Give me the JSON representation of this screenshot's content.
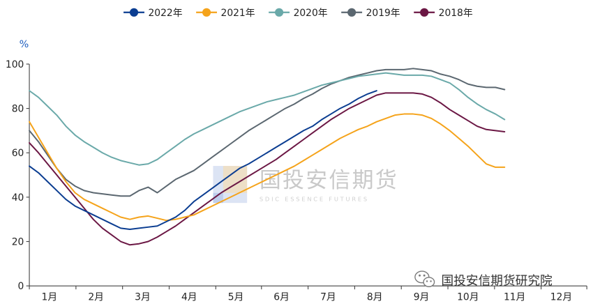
{
  "chart_data": {
    "type": "line",
    "title": "",
    "ylabel": "%",
    "xlabel": "",
    "ylim": [
      0,
      100
    ],
    "yticks": [
      0,
      20,
      40,
      60,
      80,
      100
    ],
    "xlim": [
      0,
      52
    ],
    "categories": [
      "1月",
      "2月",
      "3月",
      "4月",
      "5月",
      "6月",
      "7月",
      "8月",
      "9月",
      "10月",
      "11月",
      "12月"
    ],
    "category_centers": [
      2.2,
      7.3,
      12.4,
      17.5,
      22.6,
      27.6,
      32.7,
      37.8,
      42.9,
      48.0,
      53.1,
      58.2
    ],
    "month_boundaries": [
      0,
      5.1,
      10.2,
      15.3,
      20.4,
      25.4,
      30.5,
      35.6,
      40.7,
      45.8,
      50.9,
      56.0,
      61.0
    ],
    "x_unit": "week_of_year",
    "series": [
      {
        "name": "2022年",
        "color": "#0b3d91",
        "x": [
          0,
          1,
          2,
          3,
          4,
          5,
          6,
          7,
          8,
          9,
          10,
          11,
          12,
          13,
          14,
          15,
          16,
          17,
          18,
          19,
          20,
          21,
          22,
          23,
          24,
          25,
          26,
          27,
          28,
          29,
          30,
          31,
          32,
          33,
          34,
          35,
          36,
          37,
          38
        ],
        "values": [
          54,
          51,
          47,
          43,
          39,
          36,
          34,
          32,
          30,
          28,
          26,
          25.5,
          26,
          26.5,
          27,
          29,
          31,
          34,
          38,
          41,
          44,
          47,
          50,
          53,
          55,
          57.5,
          60,
          62.5,
          65,
          67.5,
          70,
          72,
          75,
          77.5,
          80,
          82,
          84.5,
          86.5,
          88
        ]
      },
      {
        "name": "2021年",
        "color": "#f5a31a",
        "x": [
          0,
          1,
          2,
          3,
          4,
          5,
          6,
          7,
          8,
          9,
          10,
          11,
          12,
          13,
          14,
          15,
          16,
          17,
          18,
          19,
          20,
          21,
          22,
          23,
          24,
          25,
          26,
          27,
          28,
          29,
          30,
          31,
          32,
          33,
          34,
          35,
          36,
          37,
          38,
          39,
          40,
          41,
          42,
          43,
          44,
          45,
          46,
          47,
          48,
          49,
          50,
          51,
          52
        ],
        "values": [
          74,
          67,
          60,
          53,
          47,
          42,
          39,
          37,
          35,
          33,
          31,
          30,
          31,
          31.5,
          30.5,
          29.5,
          30,
          31,
          32,
          34,
          36,
          38,
          40,
          42,
          44,
          46,
          48,
          50,
          52,
          54,
          56.5,
          59,
          61.5,
          64,
          66.5,
          68.5,
          70.5,
          72,
          74,
          75.5,
          77,
          77.5,
          77.5,
          77,
          75.5,
          73,
          70,
          66.5,
          63,
          59,
          55,
          53.5,
          53.5
        ]
      },
      {
        "name": "2020年",
        "color": "#6aa9a9",
        "x": [
          0,
          1,
          2,
          3,
          4,
          5,
          6,
          7,
          8,
          9,
          10,
          11,
          12,
          13,
          14,
          15,
          16,
          17,
          18,
          19,
          20,
          21,
          22,
          23,
          24,
          25,
          26,
          27,
          28,
          29,
          30,
          31,
          32,
          33,
          34,
          35,
          36,
          37,
          38,
          39,
          40,
          41,
          42,
          43,
          44,
          45,
          46,
          47,
          48,
          49,
          50,
          51,
          52
        ],
        "values": [
          88,
          85,
          81,
          77,
          72,
          68,
          65,
          62.5,
          60,
          58,
          56.5,
          55.5,
          54.5,
          55,
          57,
          60,
          63,
          66,
          68.5,
          70.5,
          72.5,
          74.5,
          76.5,
          78.5,
          80,
          81.5,
          83,
          84,
          85,
          86,
          87.5,
          89,
          90.5,
          91.5,
          92.5,
          93.5,
          94.5,
          95,
          95.5,
          96,
          95.5,
          95,
          95,
          95,
          94.5,
          93,
          91.5,
          88.5,
          85,
          82,
          79.5,
          77.5,
          75
        ]
      },
      {
        "name": "2019年",
        "color": "#5b6770",
        "x": [
          0,
          1,
          2,
          3,
          4,
          5,
          6,
          7,
          8,
          9,
          10,
          11,
          12,
          13,
          14,
          15,
          16,
          17,
          18,
          19,
          20,
          21,
          22,
          23,
          24,
          25,
          26,
          27,
          28,
          29,
          30,
          31,
          32,
          33,
          34,
          35,
          36,
          37,
          38,
          39,
          40,
          41,
          42,
          43,
          44,
          45,
          46,
          47,
          48,
          49,
          50,
          51,
          52
        ],
        "values": [
          70,
          65,
          59,
          53,
          48,
          45,
          43,
          42,
          41.5,
          41,
          40.5,
          40.5,
          43,
          44.5,
          42,
          45,
          48,
          50,
          52,
          55,
          58,
          61,
          64,
          67,
          70,
          72.5,
          75,
          77.5,
          80,
          82,
          84.5,
          86.5,
          89,
          91,
          92.5,
          94,
          95,
          96,
          97,
          97.5,
          97.5,
          97.5,
          98,
          97.5,
          97,
          95.5,
          94.5,
          93,
          91,
          90,
          89.5,
          89.5,
          88.5
        ]
      },
      {
        "name": "2018年",
        "color": "#6b1744",
        "x": [
          0,
          1,
          2,
          3,
          4,
          5,
          6,
          7,
          8,
          9,
          10,
          11,
          12,
          13,
          14,
          15,
          16,
          17,
          18,
          19,
          20,
          21,
          22,
          23,
          24,
          25,
          26,
          27,
          28,
          29,
          30,
          31,
          32,
          33,
          34,
          35,
          36,
          37,
          38,
          39,
          40,
          41,
          42,
          43,
          44,
          45,
          46,
          47,
          48,
          49,
          50,
          51,
          52
        ],
        "values": [
          64.5,
          60,
          55,
          50,
          45,
          40,
          35,
          30,
          26,
          23,
          20,
          18.5,
          19,
          20,
          22,
          24.5,
          27,
          30,
          33,
          36,
          39,
          42,
          44.5,
          47,
          49.5,
          52,
          54.5,
          57,
          60,
          63,
          66,
          69,
          72,
          75,
          77.5,
          80,
          82,
          84,
          86,
          87,
          87,
          87,
          87,
          86.5,
          85,
          82.5,
          79.5,
          77,
          74.5,
          72,
          70.5,
          70,
          69.5
        ]
      }
    ],
    "legend_position": "top-center",
    "grid": false
  },
  "watermark": {
    "cn": "国投安信期货",
    "en": "SDIC ESSENCE FUTURES"
  },
  "brand": {
    "text": "国投安信期货研究院"
  }
}
